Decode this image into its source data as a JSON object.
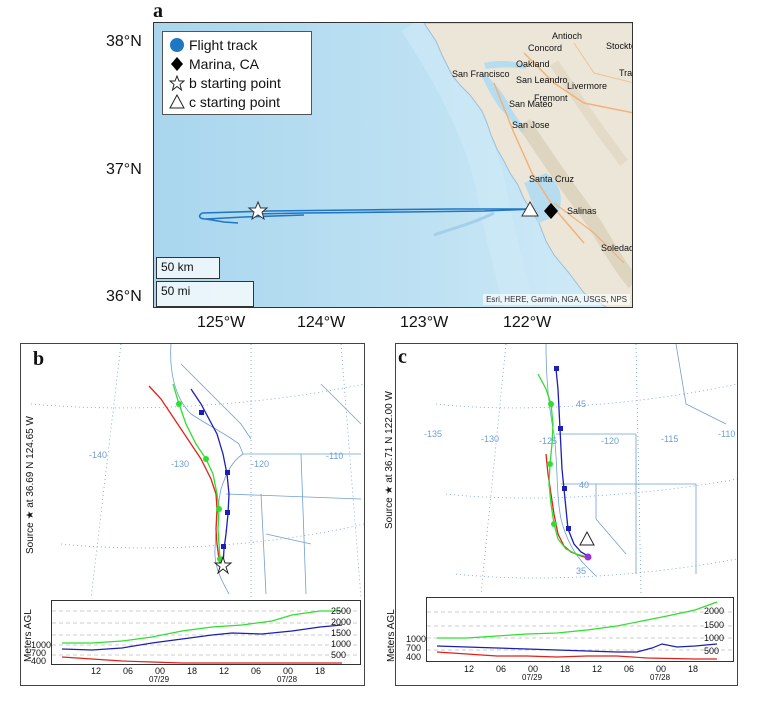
{
  "panel_a": {
    "letter": "a",
    "lat_labels": [
      "38°N",
      "37°N",
      "36°N"
    ],
    "lon_labels": [
      "125°W",
      "124°W",
      "123°W",
      "122°W"
    ],
    "legend": [
      {
        "icon": "blue-circle-icon",
        "label": "Flight track",
        "color": "#1f77c4"
      },
      {
        "icon": "black-diamond-icon",
        "label": "Marina, CA",
        "color": "#000000"
      },
      {
        "icon": "white-star-icon",
        "label": "b starting point",
        "color": "#ffffff"
      },
      {
        "icon": "white-triangle-icon",
        "label": "c starting point",
        "color": "#ffffff"
      }
    ],
    "scale_km": "50 km",
    "scale_mi": "50 mi",
    "attribution": "Esri, HERE, Garmin, NGA, USGS, NPS",
    "places": [
      "Antioch",
      "Stockton",
      "Concord",
      "Oakland",
      "Tracy",
      "San Francisco",
      "San Leandro",
      "Livermore",
      "Fremont",
      "San Mateo",
      "San Jose",
      "Santa Cruz",
      "Salinas",
      "Soledad"
    ],
    "ocean_color": "#b6dcef",
    "land_color": "#ece6d8",
    "track_color": "#1f77c4"
  },
  "panel_b": {
    "letter": "b",
    "source_label": "Source ★  at  36.69 N  124.65 W",
    "lon_ticks": [
      "-140",
      "-130",
      "-120",
      "-110"
    ],
    "agl_title": "Meters AGL",
    "agl_left_ticks": [
      "1000",
      "700",
      "400"
    ],
    "agl_right_ticks": [
      "2500",
      "2000",
      "1500",
      "1000",
      "500"
    ],
    "time_ticks": [
      "12",
      "06",
      "00",
      "18",
      "12",
      "06",
      "00",
      "18"
    ],
    "date_labels": [
      "07/29",
      "07/28"
    ]
  },
  "panel_c": {
    "letter": "c",
    "source_label": "Source ★  at  36.71 N  122.00 W",
    "lon_ticks": [
      "-135",
      "-130",
      "-125",
      "-120",
      "-115",
      "-110"
    ],
    "lat_ticks": [
      "45",
      "40",
      "35"
    ],
    "agl_title": "Meters AGL",
    "agl_left_ticks": [
      "1000",
      "700",
      "400"
    ],
    "agl_right_ticks": [
      "2000",
      "1500",
      "1000",
      "500"
    ],
    "time_ticks": [
      "12",
      "06",
      "00",
      "18",
      "12",
      "06",
      "00",
      "18"
    ],
    "date_labels": [
      "07/29",
      "07/28"
    ]
  },
  "colors": {
    "traj_red": "#e0221b",
    "traj_blue": "#1c1fb5",
    "traj_green": "#2ee02e",
    "map_lines": "#6f9fd0"
  }
}
